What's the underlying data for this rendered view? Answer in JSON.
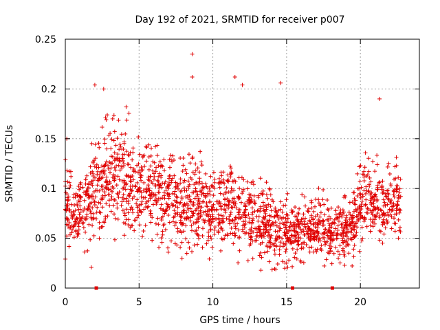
{
  "chart_data": {
    "type": "scatter",
    "title": "Day 192 of 2021, SRMTID for receiver p007",
    "xlabel": "GPS time / hours",
    "ylabel": "SRMTID / TECUs",
    "xlim": [
      0,
      24
    ],
    "ylim": [
      0,
      0.25
    ],
    "x_ticks": [
      0,
      5,
      10,
      15,
      20
    ],
    "x_tick_labels": [
      "0",
      "5",
      "10",
      "15",
      "20"
    ],
    "y_ticks": [
      0,
      0.05,
      0.1,
      0.15,
      0.2,
      0.25
    ],
    "y_tick_labels": [
      "0",
      "0.05",
      "0.1",
      "0.15",
      "0.2",
      "0.25"
    ],
    "grid": true,
    "marker": "+",
    "color": "#e00000",
    "x_data_range": [
      0,
      22.75
    ],
    "gap_markers_x": [
      2.1,
      15.4,
      18.1
    ],
    "envelope": {
      "hours": [
        0,
        1,
        2,
        3,
        4,
        5,
        6,
        7,
        8,
        9,
        10,
        11,
        12,
        13,
        14,
        15,
        16,
        17,
        18,
        19,
        20,
        21,
        22,
        22.75
      ],
      "median": [
        0.085,
        0.075,
        0.095,
        0.12,
        0.115,
        0.1,
        0.095,
        0.09,
        0.085,
        0.085,
        0.08,
        0.08,
        0.075,
        0.065,
        0.06,
        0.055,
        0.055,
        0.06,
        0.055,
        0.055,
        0.085,
        0.09,
        0.085,
        0.085
      ],
      "spread": [
        0.03,
        0.03,
        0.04,
        0.045,
        0.045,
        0.04,
        0.04,
        0.04,
        0.04,
        0.035,
        0.035,
        0.035,
        0.03,
        0.03,
        0.03,
        0.025,
        0.025,
        0.025,
        0.025,
        0.025,
        0.03,
        0.035,
        0.03,
        0.03
      ]
    },
    "notable_points": [
      {
        "x": 8.6,
        "y": 0.235
      },
      {
        "x": 8.6,
        "y": 0.212
      },
      {
        "x": 2.0,
        "y": 0.204
      },
      {
        "x": 11.5,
        "y": 0.212
      },
      {
        "x": 12.0,
        "y": 0.204
      },
      {
        "x": 14.6,
        "y": 0.206
      },
      {
        "x": 21.3,
        "y": 0.19
      },
      {
        "x": 2.6,
        "y": 0.2
      },
      {
        "x": 0.1,
        "y": 0.15
      }
    ],
    "point_count": 2000
  }
}
